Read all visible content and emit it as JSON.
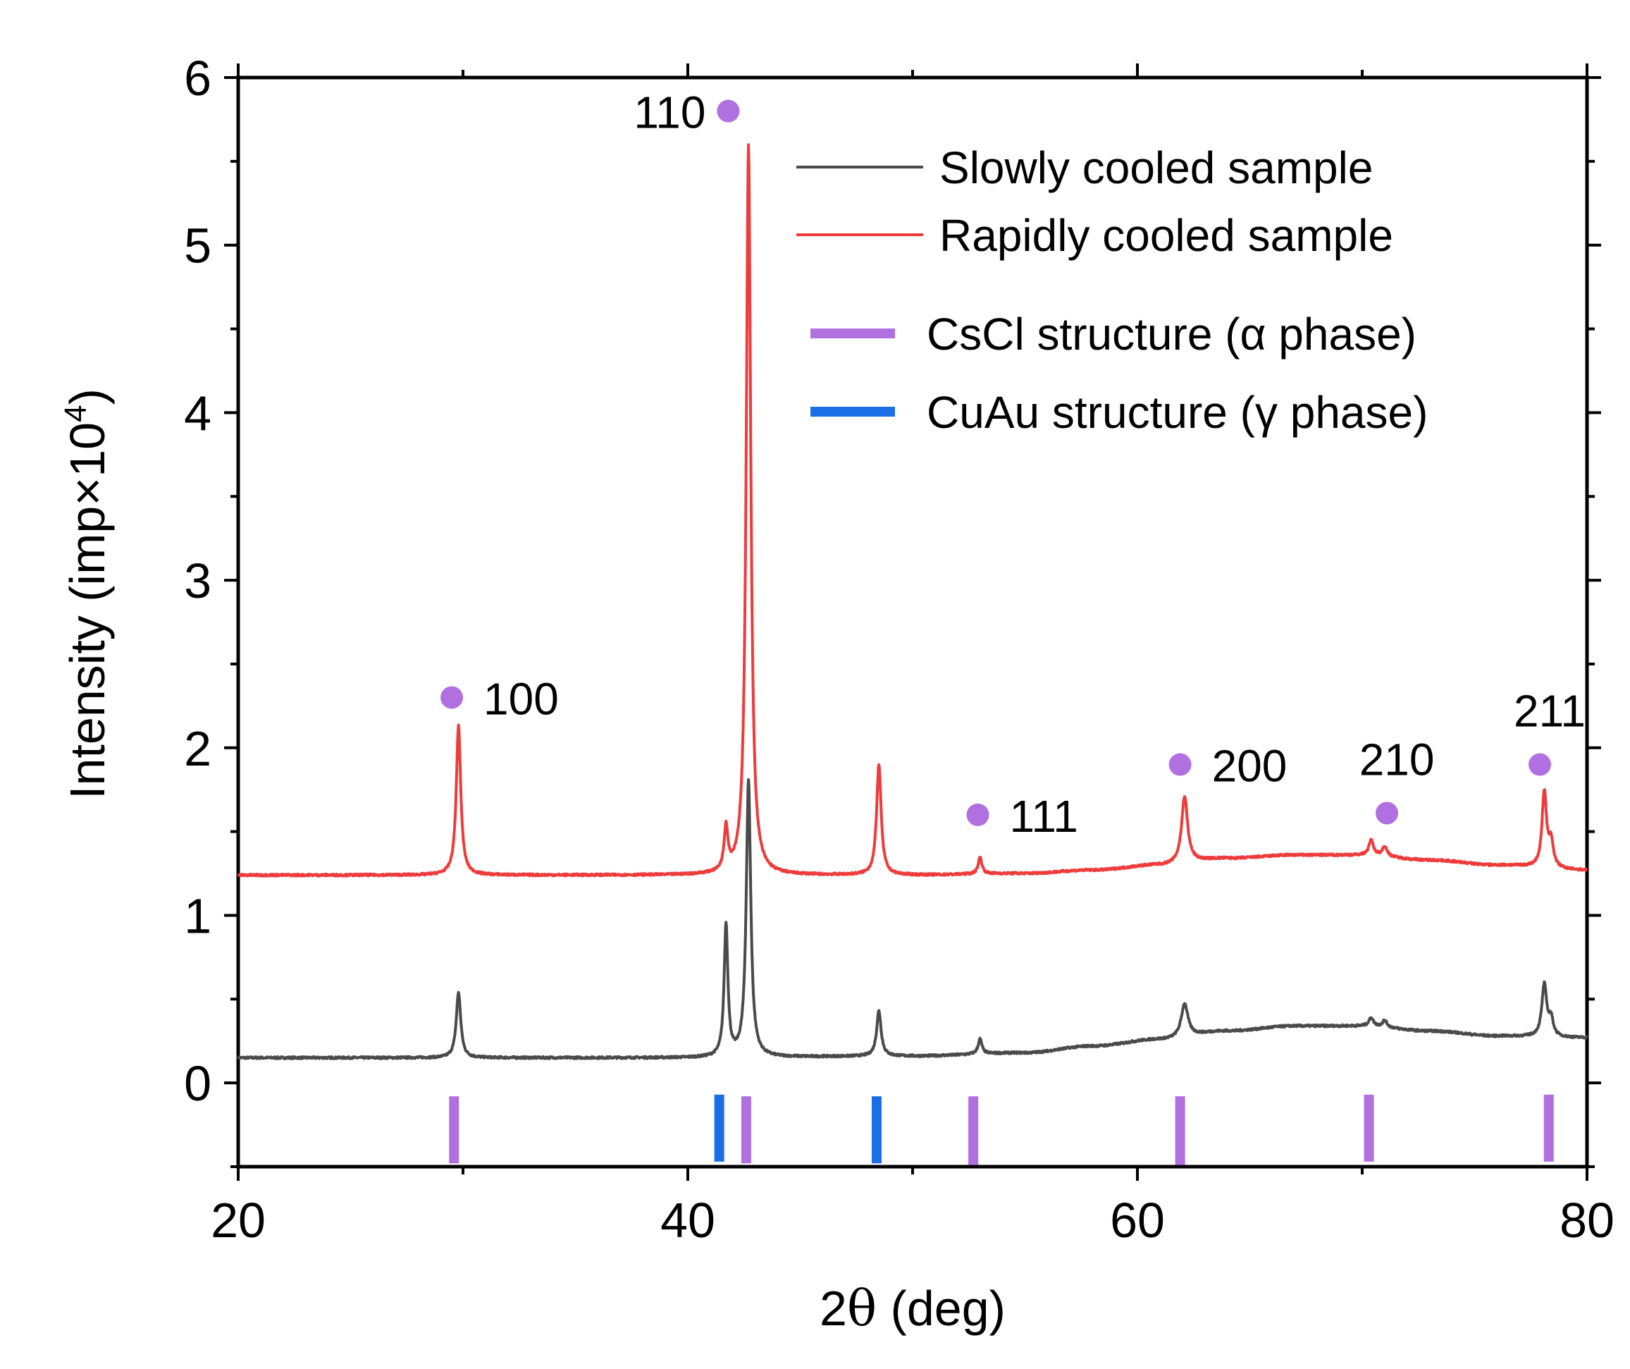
{
  "chart_data": {
    "type": "line",
    "title": "",
    "xlabel_parts": [
      "2",
      "θ",
      " (deg)"
    ],
    "ylabel_parts": [
      "Intensity (imp",
      "×",
      "10",
      "4",
      ")"
    ],
    "xlim": [
      20,
      80
    ],
    "ylim": [
      -0.5,
      6
    ],
    "x_ticks": [
      20,
      40,
      60,
      80
    ],
    "x_tick_labels": [
      "20",
      "40",
      "60",
      "80"
    ],
    "x_minor_ticks": [
      30,
      50,
      70
    ],
    "y_ticks": [
      0,
      1,
      2,
      3,
      4,
      5,
      6
    ],
    "y_tick_labels": [
      "0",
      "1",
      "2",
      "3",
      "4",
      "5",
      "6"
    ],
    "y_minor_ticks": [
      -0.5,
      0.5,
      1.5,
      2.5,
      3.5,
      4.5,
      5.5
    ],
    "series": [
      {
        "name": "Slowly cooled sample",
        "color": "#4a4a4a",
        "baseline": [
          [
            20,
            0.15
          ],
          [
            30,
            0.15
          ],
          [
            40,
            0.15
          ],
          [
            50,
            0.16
          ],
          [
            55,
            0.18
          ],
          [
            58,
            0.22
          ],
          [
            61,
            0.26
          ],
          [
            64,
            0.31
          ],
          [
            67,
            0.34
          ],
          [
            70,
            0.34
          ],
          [
            73,
            0.31
          ],
          [
            76,
            0.28
          ],
          [
            80,
            0.27
          ]
        ],
        "peaks": [
          {
            "x": 29.8,
            "height": 0.39,
            "width": 0.12
          },
          {
            "x": 41.7,
            "height": 0.79,
            "width": 0.1
          },
          {
            "x": 42.7,
            "height": 1.65,
            "width": 0.12
          },
          {
            "x": 48.5,
            "height": 0.27,
            "width": 0.12
          },
          {
            "x": 53.0,
            "height": 0.09,
            "width": 0.1
          },
          {
            "x": 62.1,
            "height": 0.2,
            "width": 0.18
          },
          {
            "x": 70.4,
            "height": 0.05,
            "width": 0.12
          },
          {
            "x": 71.0,
            "height": 0.04,
            "width": 0.12
          },
          {
            "x": 78.1,
            "height": 0.31,
            "width": 0.13
          },
          {
            "x": 78.4,
            "height": 0.1,
            "width": 0.12
          }
        ]
      },
      {
        "name": "Rapidly cooled sample",
        "color": "#ee3b3b",
        "baseline": [
          [
            20,
            1.24
          ],
          [
            30,
            1.24
          ],
          [
            40,
            1.24
          ],
          [
            45,
            1.24
          ],
          [
            50,
            1.24
          ],
          [
            55,
            1.25
          ],
          [
            58,
            1.27
          ],
          [
            61,
            1.3
          ],
          [
            64,
            1.34
          ],
          [
            67,
            1.36
          ],
          [
            70,
            1.36
          ],
          [
            73,
            1.33
          ],
          [
            76,
            1.3
          ],
          [
            80,
            1.27
          ]
        ],
        "peaks": [
          {
            "x": 29.8,
            "height": 0.89,
            "width": 0.12
          },
          {
            "x": 41.7,
            "height": 0.26,
            "width": 0.1
          },
          {
            "x": 42.7,
            "height": 4.36,
            "width": 0.12
          },
          {
            "x": 48.5,
            "height": 0.66,
            "width": 0.12
          },
          {
            "x": 53.0,
            "height": 0.1,
            "width": 0.1
          },
          {
            "x": 62.1,
            "height": 0.4,
            "width": 0.16
          },
          {
            "x": 70.4,
            "height": 0.09,
            "width": 0.12
          },
          {
            "x": 71.0,
            "height": 0.06,
            "width": 0.12
          },
          {
            "x": 78.1,
            "height": 0.45,
            "width": 0.12
          },
          {
            "x": 78.4,
            "height": 0.15,
            "width": 0.12
          }
        ]
      }
    ],
    "reference_lines": [
      {
        "phase": "alpha",
        "x": 29.6,
        "top": -0.08,
        "bottom": -0.48
      },
      {
        "phase": "alpha",
        "x": 42.6,
        "top": -0.08,
        "bottom": -0.48
      },
      {
        "phase": "alpha",
        "x": 52.7,
        "top": -0.08,
        "bottom": -0.49
      },
      {
        "phase": "alpha",
        "x": 61.9,
        "top": -0.08,
        "bottom": -0.49
      },
      {
        "phase": "alpha",
        "x": 70.3,
        "top": -0.07,
        "bottom": -0.47
      },
      {
        "phase": "alpha",
        "x": 78.3,
        "top": -0.07,
        "bottom": -0.47
      },
      {
        "phase": "gamma",
        "x": 41.4,
        "top": -0.07,
        "bottom": -0.47
      },
      {
        "phase": "gamma",
        "x": 48.4,
        "top": -0.08,
        "bottom": -0.48
      }
    ],
    "reference_colors": {
      "alpha": "#b070e0",
      "gamma": "#1a6ee6"
    },
    "peak_markers": [
      {
        "label": "110",
        "x": 41.8,
        "y": 5.8,
        "label_side": "left"
      },
      {
        "label": "100",
        "x": 29.5,
        "y": 2.3,
        "label_side": "right"
      },
      {
        "label": "111",
        "x": 52.9,
        "y": 1.6,
        "label_side": "right"
      },
      {
        "label": "200",
        "x": 61.9,
        "y": 1.9,
        "label_side": "right"
      },
      {
        "label": "210",
        "x": 71.1,
        "y": 1.61,
        "label_side": "above"
      },
      {
        "label": "211",
        "x": 77.9,
        "y": 1.9,
        "label_side": "above"
      }
    ],
    "marker_color": "#b070e0",
    "legend": {
      "location": "top-right",
      "entries": [
        {
          "label": "Slowly cooled sample",
          "kind": "line",
          "color": "#4a4a4a"
        },
        {
          "label": "Rapidly cooled sample",
          "kind": "line",
          "color": "#ee3b3b"
        },
        {
          "label": "CsCl structure (α phase)",
          "kind": "bar",
          "color": "#b070e0"
        },
        {
          "label": "CuAu structure (γ phase)",
          "kind": "bar",
          "color": "#1a6ee6"
        }
      ]
    }
  }
}
